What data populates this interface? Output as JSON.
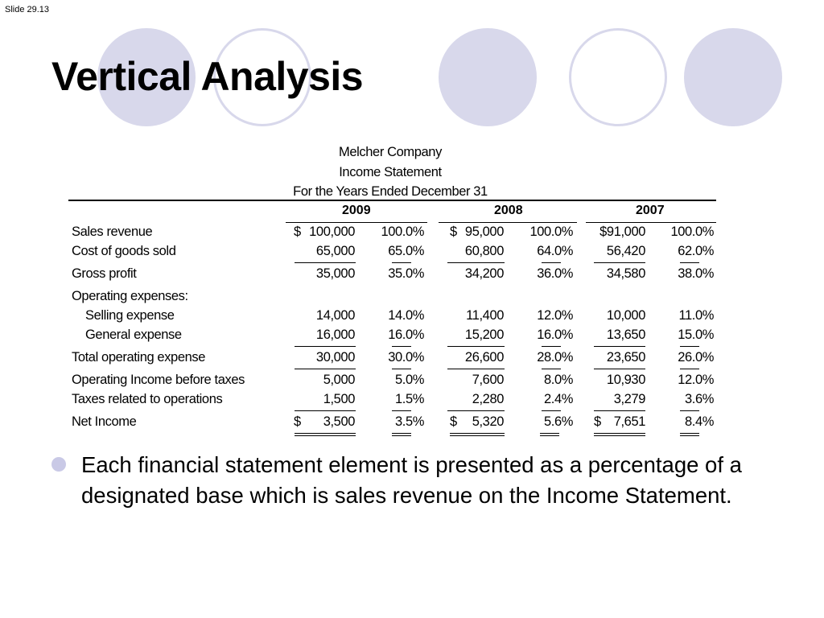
{
  "slide_number": "Slide 29.13",
  "title": "Vertical Analysis",
  "statement": {
    "company": "Melcher Company",
    "name": "Income Statement",
    "period": "For the Years Ended December 31",
    "years": [
      "2009",
      "2008",
      "2007"
    ],
    "rows": [
      {
        "label": "Sales revenue",
        "values": [
          "100,000",
          "100.0%",
          "95,000",
          "100.0%",
          "$91,000",
          "100.0%"
        ]
      },
      {
        "label": "Cost of goods sold",
        "values": [
          "65,000",
          "65.0%",
          "60,800",
          "64.0%",
          "56,420",
          "62.0%"
        ]
      },
      {
        "label": "Gross profit",
        "values": [
          "35,000",
          "35.0%",
          "34,200",
          "36.0%",
          "34,580",
          "38.0%"
        ]
      },
      {
        "label": "Operating expenses:"
      },
      {
        "label": "Selling expense",
        "values": [
          "14,000",
          "14.0%",
          "11,400",
          "12.0%",
          "10,000",
          "11.0%"
        ]
      },
      {
        "label": "General expense",
        "values": [
          "16,000",
          "16.0%",
          "15,200",
          "16.0%",
          "13,650",
          "15.0%"
        ]
      },
      {
        "label": "Total operating expense",
        "values": [
          "30,000",
          "30.0%",
          "26,600",
          "28.0%",
          "23,650",
          "26.0%"
        ]
      },
      {
        "label": "Operating Income before taxes",
        "values": [
          "5,000",
          "5.0%",
          "7,600",
          "8.0%",
          "10,930",
          "12.0%"
        ]
      },
      {
        "label": "Taxes related to operations",
        "values": [
          "1,500",
          "1.5%",
          "2,280",
          "2.4%",
          "3,279",
          "3.6%"
        ]
      },
      {
        "label": "Net Income",
        "values": [
          "3,500",
          "3.5%",
          "5,320",
          "5.6%",
          "7,651",
          "8.4%"
        ]
      }
    ],
    "dollar_sign": "$"
  },
  "bullet": "Each financial statement element is presented as a percentage of a designated base which is sales revenue on the Income Statement.",
  "colors": {
    "circle": "#d8d8eb",
    "bullet": "#c9c9e6"
  }
}
